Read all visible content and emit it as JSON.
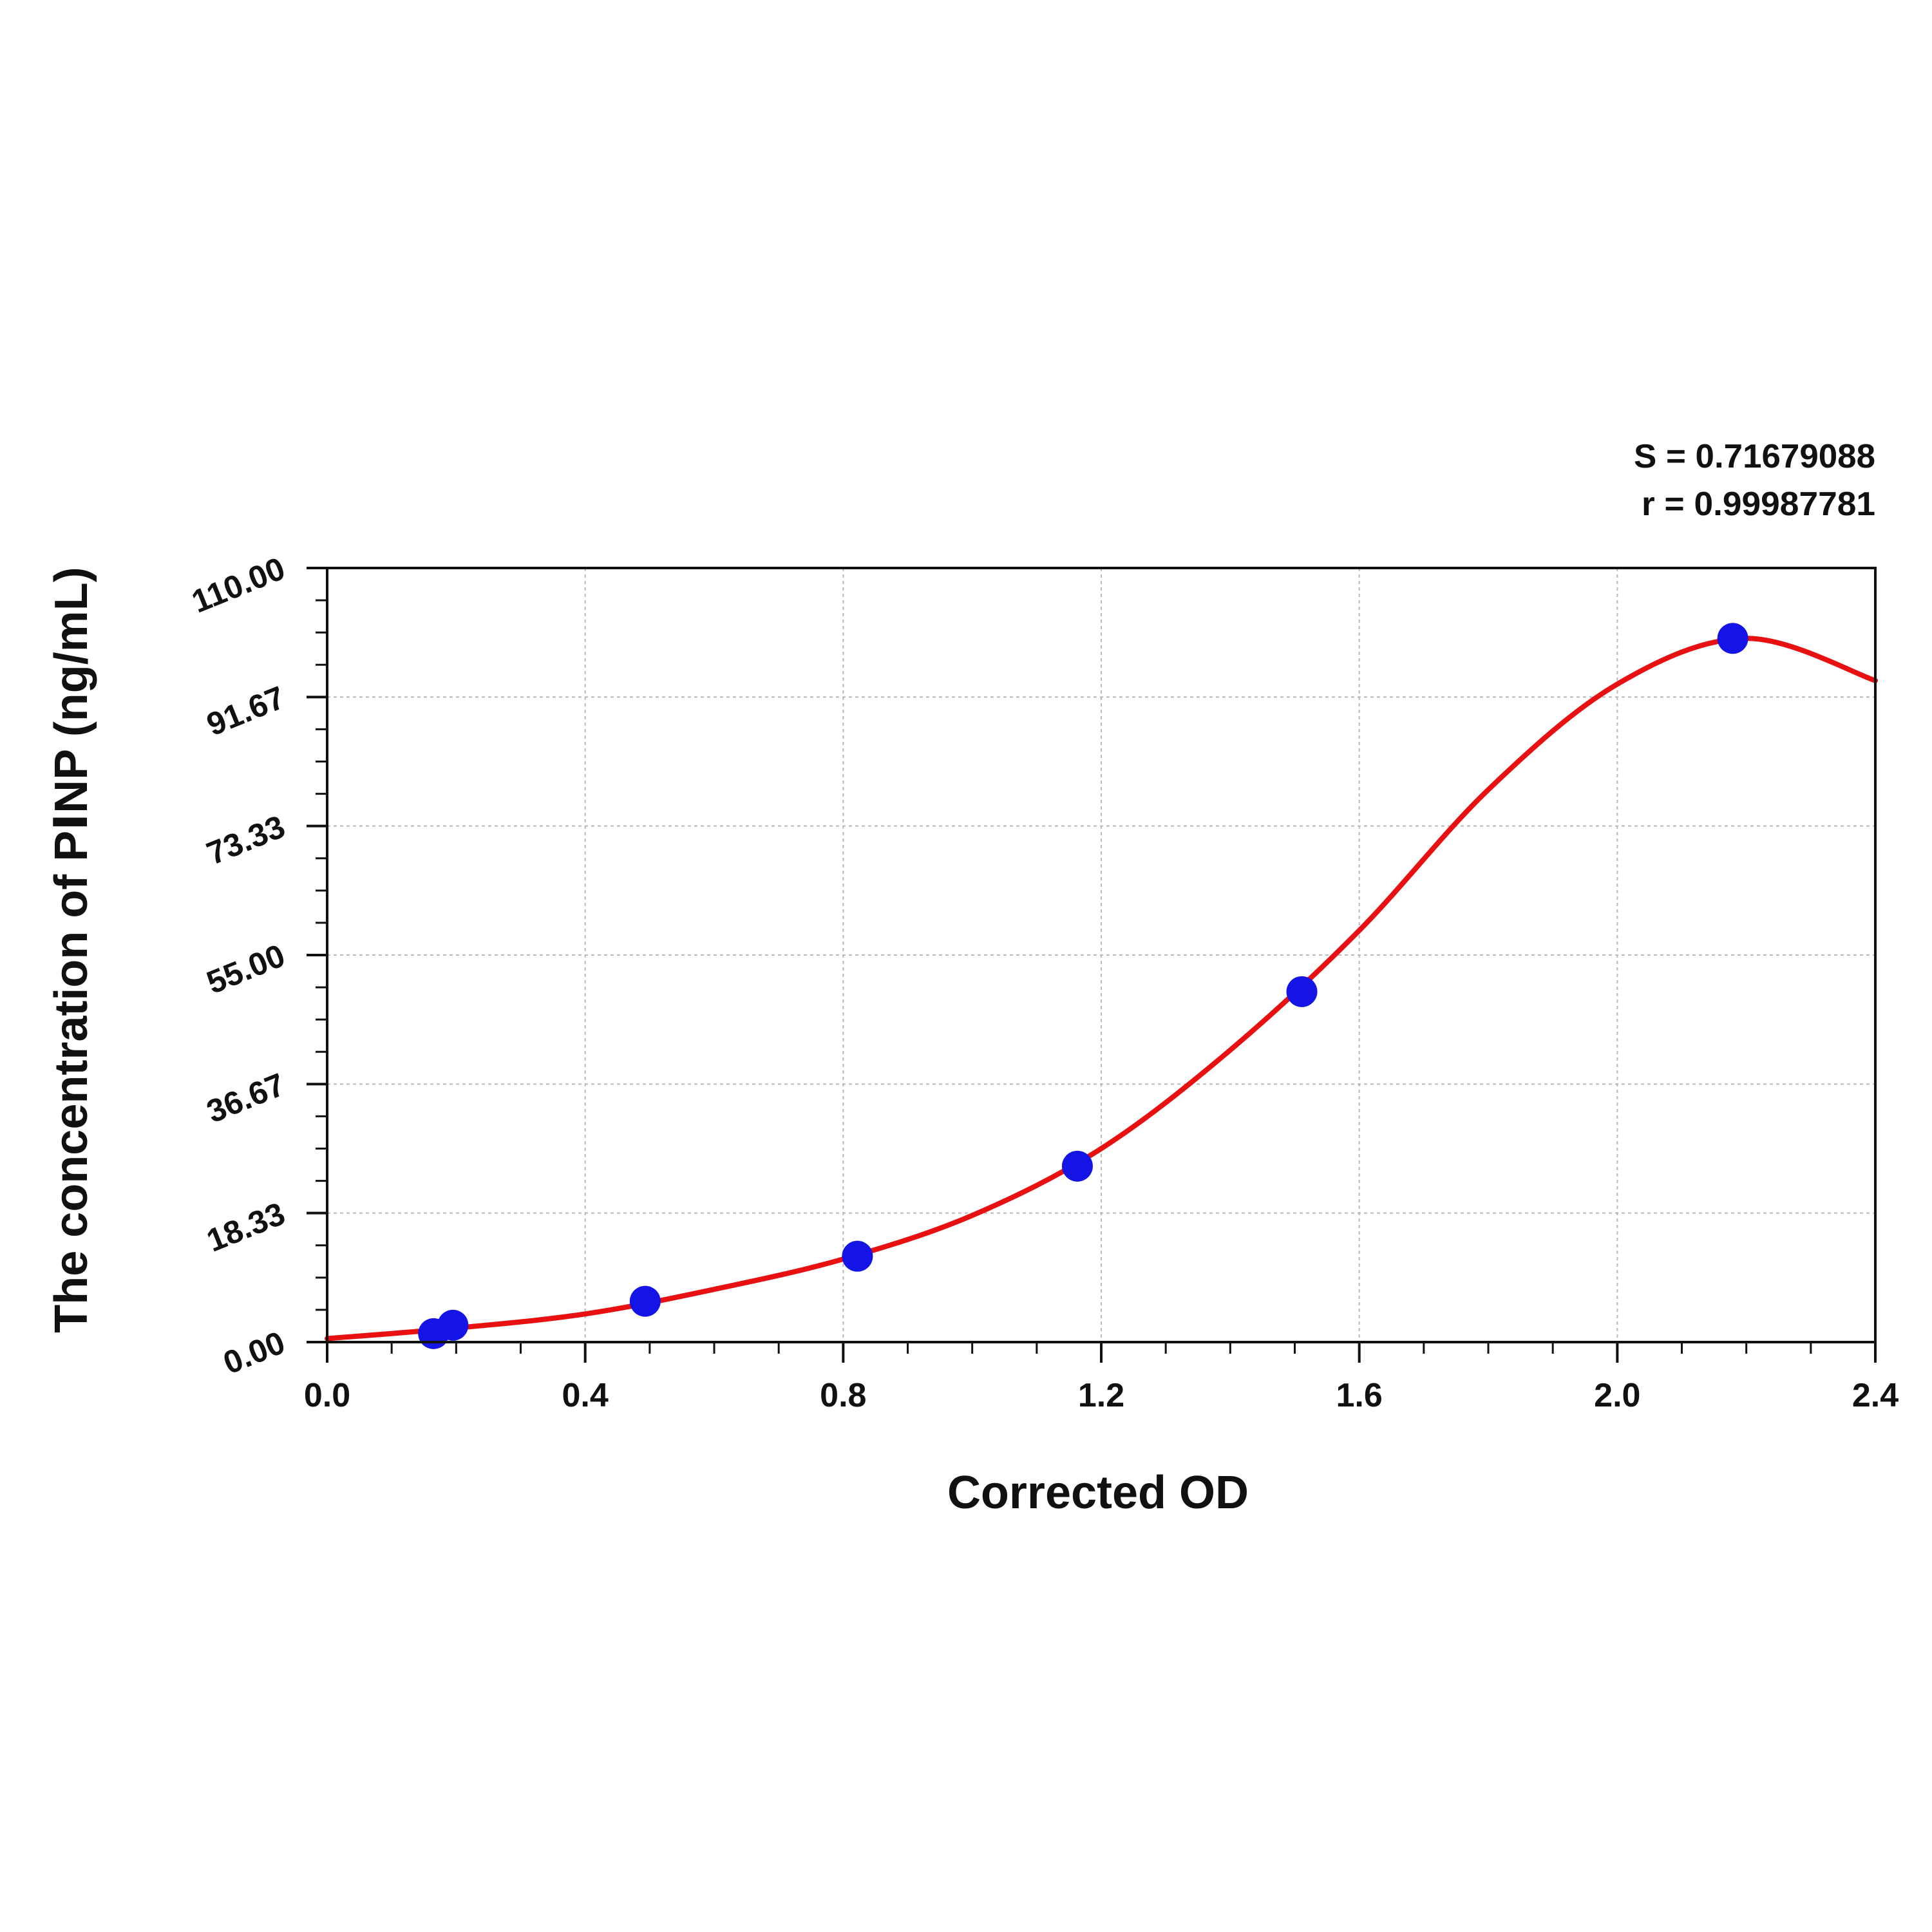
{
  "chart_data": {
    "type": "scatter",
    "xlabel": "Corrected OD",
    "ylabel": "The concentration of PⅠNP (ng/mL)",
    "xlim": [
      0.0,
      2.4
    ],
    "ylim": [
      0.0,
      110.0
    ],
    "x_ticks": [
      "0.0",
      "0.4",
      "0.8",
      "1.2",
      "1.6",
      "2.0",
      "2.4"
    ],
    "y_ticks": [
      "0.00",
      "18.33",
      "36.67",
      "55.00",
      "73.33",
      "91.67",
      "110.00"
    ],
    "grid": true,
    "annotations": [
      "S = 0.71679088",
      "r = 0.99987781"
    ],
    "series": [
      {
        "kind": "points",
        "color": "#1414e6",
        "x": [
          0.165,
          0.195,
          0.493,
          0.822,
          1.163,
          1.511,
          2.179
        ],
        "y": [
          1.2,
          2.4,
          5.8,
          12.2,
          25.0,
          49.8,
          100.0
        ]
      },
      {
        "kind": "fit-curve",
        "color": "#e81010",
        "x": [
          0.0,
          0.2,
          0.4,
          0.6,
          0.8,
          1.0,
          1.2,
          1.4,
          1.6,
          1.8,
          2.0,
          2.2,
          2.4
        ],
        "y": [
          0.5,
          2.0,
          4.0,
          7.5,
          11.8,
          18.0,
          27.5,
          41.5,
          58.5,
          78.5,
          93.5,
          100.0,
          94.0
        ]
      }
    ]
  }
}
